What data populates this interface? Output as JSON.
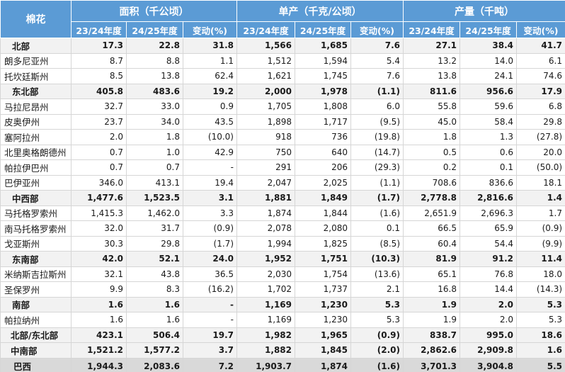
{
  "header": {
    "row_label": "棉花",
    "groups": [
      "面积（千公顷）",
      "单产（千克/公顷）",
      "产量（千吨）"
    ],
    "subheaders": [
      "23/24年度",
      "24/25年度",
      "变动(%)",
      "23/24年度",
      "24/25年度",
      "变动(%)",
      "23/24年度",
      "24/25年度",
      "变动(%)"
    ]
  },
  "rows": [
    {
      "type": "region",
      "cells": [
        "北部",
        "17.3",
        "22.8",
        "31.8",
        "1,566",
        "1,685",
        "7.6",
        "27.1",
        "38.4",
        "41.7"
      ]
    },
    {
      "type": "state",
      "cells": [
        "朗多尼亚州",
        "8.7",
        "8.8",
        "1.1",
        "1,512",
        "1,594",
        "5.4",
        "13.2",
        "14.0",
        "6.1"
      ]
    },
    {
      "type": "state",
      "cells": [
        "托坎廷斯州",
        "8.5",
        "13.8",
        "62.4",
        "1,621",
        "1,745",
        "7.6",
        "13.8",
        "24.1",
        "74.6"
      ]
    },
    {
      "type": "region",
      "cells": [
        "东北部",
        "405.8",
        "483.6",
        "19.2",
        "2,000",
        "1,978",
        "(1.1)",
        "811.6",
        "956.6",
        "17.9"
      ]
    },
    {
      "type": "state",
      "cells": [
        "马拉尼昂州",
        "32.7",
        "33.0",
        "0.9",
        "1,705",
        "1,808",
        "6.0",
        "55.8",
        "59.6",
        "6.8"
      ]
    },
    {
      "type": "state",
      "cells": [
        "皮奥伊州",
        "23.7",
        "34.0",
        "43.5",
        "1,898",
        "1,717",
        "(9.5)",
        "45.0",
        "58.4",
        "29.8"
      ]
    },
    {
      "type": "state",
      "cells": [
        "塞阿拉州",
        "2.0",
        "1.8",
        "(10.0)",
        "918",
        "736",
        "(19.8)",
        "1.8",
        "1.3",
        "(27.8)"
      ]
    },
    {
      "type": "state",
      "cells": [
        "北里奥格朗德州",
        "0.7",
        "1.0",
        "42.9",
        "750",
        "640",
        "(14.7)",
        "0.5",
        "0.6",
        "20.0"
      ]
    },
    {
      "type": "state",
      "cells": [
        "帕拉伊巴州",
        "0.7",
        "0.7",
        "-",
        "291",
        "206",
        "(29.3)",
        "0.2",
        "0.1",
        "(50.0)"
      ]
    },
    {
      "type": "state",
      "cells": [
        "巴伊亚州",
        "346.0",
        "413.1",
        "19.4",
        "2,047",
        "2,025",
        "(1.1)",
        "708.6",
        "836.6",
        "18.1"
      ]
    },
    {
      "type": "region",
      "cells": [
        "中西部",
        "1,477.6",
        "1,523.5",
        "3.1",
        "1,881",
        "1,849",
        "(1.7)",
        "2,778.8",
        "2,816.6",
        "1.4"
      ]
    },
    {
      "type": "state",
      "cells": [
        "马托格罗索州",
        "1,415.3",
        "1,462.0",
        "3.3",
        "1,874",
        "1,844",
        "(1.6)",
        "2,651.9",
        "2,696.3",
        "1.7"
      ]
    },
    {
      "type": "state",
      "cells": [
        "南马托格罗索州",
        "32.0",
        "31.7",
        "(0.9)",
        "2,078",
        "2,080",
        "0.1",
        "66.5",
        "65.9",
        "(0.9)"
      ]
    },
    {
      "type": "state",
      "cells": [
        "戈亚斯州",
        "30.3",
        "29.8",
        "(1.7)",
        "1,994",
        "1,825",
        "(8.5)",
        "60.4",
        "54.4",
        "(9.9)"
      ]
    },
    {
      "type": "region",
      "cells": [
        "东南部",
        "42.0",
        "52.1",
        "24.0",
        "1,952",
        "1,751",
        "(10.3)",
        "81.9",
        "91.2",
        "11.4"
      ]
    },
    {
      "type": "state",
      "cells": [
        "米纳斯吉拉斯州",
        "32.1",
        "43.8",
        "36.5",
        "2,030",
        "1,754",
        "(13.6)",
        "65.1",
        "76.8",
        "18.0"
      ]
    },
    {
      "type": "state",
      "cells": [
        "圣保罗州",
        "9.9",
        "8.3",
        "(16.2)",
        "1,702",
        "1,737",
        "2.1",
        "16.8",
        "14.4",
        "(14.3)"
      ]
    },
    {
      "type": "region",
      "cells": [
        "南部",
        "1.6",
        "1.6",
        "-",
        "1,169",
        "1,230",
        "5.3",
        "1.9",
        "2.0",
        "5.3"
      ]
    },
    {
      "type": "state",
      "cells": [
        "帕拉纳州",
        "1.6",
        "1.6",
        "-",
        "1,169",
        "1,230",
        "5.3",
        "1.9",
        "2.0",
        "5.3"
      ]
    },
    {
      "type": "summary",
      "cells": [
        "北部/东北部",
        "423.1",
        "506.4",
        "19.7",
        "1,982",
        "1,965",
        "(0.9)",
        "838.7",
        "995.0",
        "18.6"
      ]
    },
    {
      "type": "summary",
      "cells": [
        "中南部",
        "1,521.2",
        "1,577.2",
        "3.7",
        "1,882",
        "1,845",
        "(2.0)",
        "2,862.6",
        "2,909.8",
        "1.6"
      ]
    },
    {
      "type": "total",
      "cells": [
        "巴西",
        "1,944.3",
        "2,083.6",
        "7.2",
        "1,903.7",
        "1,874",
        "(1.6)",
        "3,701.3",
        "3,904.8",
        "5.5"
      ]
    }
  ]
}
